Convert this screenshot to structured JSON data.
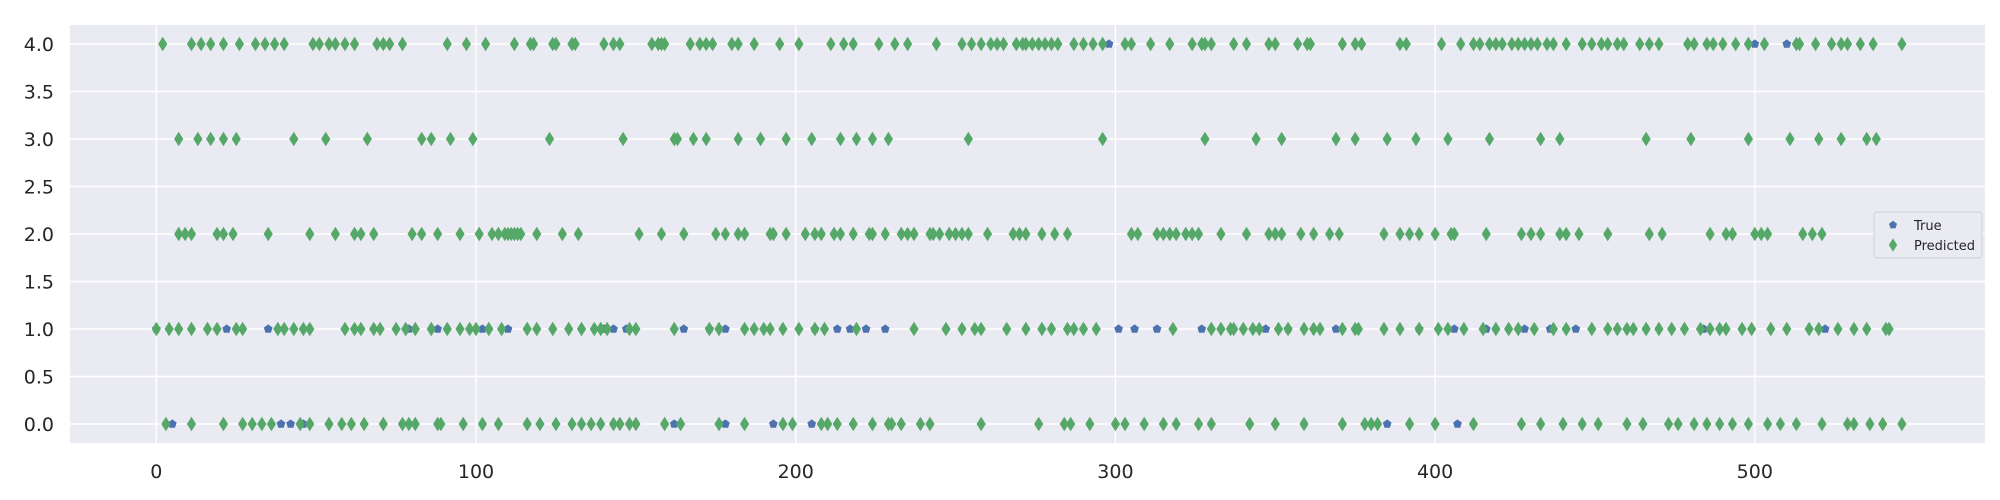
{
  "chart_data": {
    "type": "scatter",
    "title": "",
    "xlabel": "",
    "ylabel": "",
    "xlim": [
      -27,
      572
    ],
    "ylim": [
      -0.2,
      4.2
    ],
    "x_ticks": [
      0,
      100,
      200,
      300,
      400,
      500
    ],
    "y_ticks": [
      0.0,
      0.5,
      1.0,
      1.5,
      2.0,
      2.5,
      3.0,
      3.5,
      4.0
    ],
    "y_tick_labels": [
      "0.0",
      "0.5",
      "1.0",
      "1.5",
      "2.0",
      "2.5",
      "3.0",
      "3.5",
      "4.0"
    ],
    "grid": true,
    "legend_position": "right",
    "series": [
      {
        "name": "True",
        "marker": "pentagon",
        "color": "#4C72B0",
        "points": {
          "4": [
            298,
            500,
            510
          ],
          "1": [
            0,
            22,
            35,
            79,
            88,
            102,
            110,
            140,
            143,
            147,
            165,
            173,
            178,
            206,
            213,
            217,
            222,
            228,
            301,
            306,
            313,
            327,
            347,
            354,
            369,
            395,
            406,
            416,
            428,
            436,
            444,
            484,
            522
          ],
          "0": [
            5,
            39,
            42,
            46,
            162,
            178,
            193,
            205,
            385,
            407
          ]
        }
      },
      {
        "name": "Predicted",
        "marker": "thin_diamond",
        "color": "#55A868",
        "points": {
          "4": [
            2,
            11,
            14,
            17,
            21,
            26,
            31,
            34,
            37,
            40,
            49,
            51,
            54,
            56,
            59,
            62,
            69,
            71,
            73,
            77,
            91,
            97,
            103,
            112,
            117,
            118,
            124,
            125,
            130,
            131,
            140,
            143,
            145,
            155,
            157,
            158,
            159,
            167,
            170,
            172,
            174,
            180,
            182,
            187,
            195,
            201,
            211,
            215,
            218,
            226,
            231,
            235,
            244,
            252,
            255,
            258,
            261,
            263,
            265,
            269,
            271,
            272,
            274,
            276,
            278,
            280,
            282,
            287,
            290,
            293,
            296,
            303,
            305,
            311,
            317,
            324,
            327,
            328,
            330,
            337,
            341,
            348,
            350,
            357,
            360,
            361,
            371,
            375,
            377,
            389,
            391,
            402,
            408,
            412,
            414,
            417,
            419,
            421,
            424,
            426,
            428,
            430,
            432,
            435,
            437,
            441,
            446,
            449,
            452,
            454,
            457,
            459,
            464,
            467,
            470,
            479,
            481,
            485,
            487,
            490,
            494,
            498,
            503,
            513,
            514,
            519,
            524,
            527,
            529,
            533,
            537,
            546
          ],
          "3": [
            7,
            13,
            17,
            21,
            25,
            43,
            53,
            66,
            83,
            86,
            92,
            99,
            123,
            146,
            162,
            163,
            168,
            172,
            182,
            189,
            197,
            205,
            214,
            219,
            224,
            229,
            254,
            296,
            328,
            344,
            352,
            369,
            375,
            385,
            394,
            404,
            417,
            433,
            439,
            466,
            480,
            498,
            511,
            520,
            527,
            535,
            538
          ],
          "2": [
            7,
            9,
            11,
            19,
            21,
            24,
            35,
            48,
            56,
            62,
            64,
            68,
            80,
            83,
            88,
            95,
            101,
            105,
            107,
            109,
            110,
            111,
            112,
            113,
            114,
            119,
            127,
            132,
            151,
            158,
            165,
            175,
            178,
            182,
            184,
            192,
            193,
            197,
            203,
            206,
            208,
            212,
            214,
            218,
            223,
            224,
            228,
            233,
            235,
            237,
            242,
            243,
            245,
            248,
            250,
            252,
            254,
            260,
            268,
            270,
            272,
            277,
            281,
            285,
            305,
            307,
            313,
            315,
            317,
            319,
            322,
            324,
            326,
            333,
            341,
            348,
            350,
            352,
            358,
            362,
            367,
            370,
            384,
            389,
            392,
            395,
            400,
            405,
            406,
            416,
            427,
            430,
            433,
            439,
            441,
            445,
            454,
            467,
            471,
            486,
            491,
            493,
            500,
            502,
            504,
            515,
            518,
            521
          ],
          "1": [
            0,
            4,
            7,
            11,
            16,
            19,
            25,
            27,
            38,
            40,
            43,
            46,
            48,
            59,
            62,
            64,
            68,
            70,
            75,
            78,
            81,
            86,
            91,
            95,
            98,
            100,
            104,
            108,
            116,
            119,
            124,
            129,
            133,
            137,
            139,
            141,
            148,
            150,
            162,
            173,
            176,
            184,
            187,
            190,
            192,
            196,
            201,
            206,
            209,
            219,
            237,
            247,
            252,
            256,
            258,
            266,
            272,
            277,
            280,
            285,
            287,
            290,
            294,
            318,
            330,
            333,
            336,
            337,
            340,
            343,
            345,
            351,
            354,
            359,
            362,
            364,
            371,
            375,
            376,
            384,
            389,
            395,
            401,
            404,
            409,
            415,
            419,
            423,
            426,
            431,
            437,
            441,
            449,
            454,
            457,
            460,
            462,
            466,
            470,
            474,
            478,
            483,
            486,
            489,
            491,
            496,
            499,
            505,
            510,
            517,
            520,
            526,
            531,
            535,
            541,
            542
          ],
          "0": [
            3,
            11,
            21,
            27,
            30,
            33,
            36,
            45,
            48,
            54,
            58,
            61,
            65,
            71,
            77,
            79,
            81,
            88,
            89,
            96,
            102,
            107,
            116,
            120,
            125,
            130,
            133,
            136,
            139,
            143,
            145,
            148,
            150,
            159,
            164,
            176,
            184,
            196,
            199,
            208,
            210,
            213,
            218,
            224,
            229,
            230,
            233,
            239,
            242,
            258,
            276,
            284,
            286,
            292,
            300,
            303,
            309,
            315,
            319,
            326,
            330,
            342,
            350,
            359,
            371,
            378,
            380,
            382,
            392,
            400,
            412,
            427,
            433,
            440,
            446,
            451,
            460,
            465,
            473,
            476,
            481,
            485,
            489,
            493,
            498,
            504,
            508,
            513,
            521,
            529,
            531,
            536,
            540,
            546
          ]
        }
      }
    ]
  }
}
